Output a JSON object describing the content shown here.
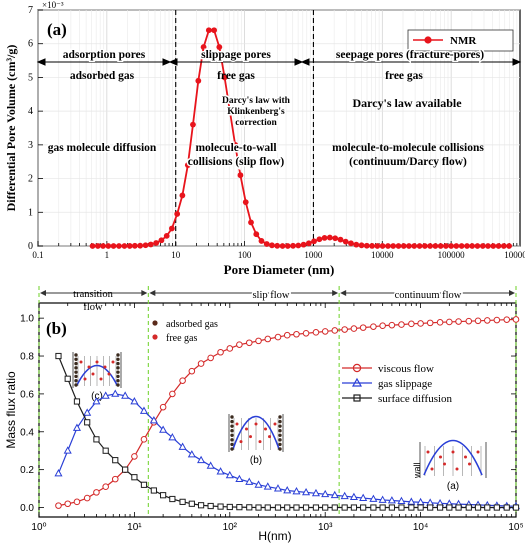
{
  "chart_data": [
    {
      "panel_label": "(a)",
      "type": "line",
      "xscale": "log",
      "xlim": [
        0.1,
        1000000
      ],
      "ylim": [
        0,
        0.007
      ],
      "xlabel": "Pore Diameter (nm)",
      "ylabel": "Differential Pore Volume (cm³/g)",
      "y_multiplier": "×10⁻³",
      "x_tick_labels": [
        "0.1",
        "1",
        "10",
        "100",
        "1000",
        "10000",
        "100000",
        "1000000"
      ],
      "y_tick_labels": [
        "0",
        "1",
        "2",
        "3",
        "4",
        "5",
        "6",
        "7"
      ],
      "grid": true,
      "legend_position": "top-right",
      "divider_lines_at": [
        10,
        1000
      ],
      "series": [
        {
          "name": "NMR",
          "color": "#e8141c",
          "marker": "circle",
          "x": [
            0.62,
            0.74,
            0.88,
            1.05,
            1.25,
            1.5,
            1.8,
            2.15,
            2.55,
            3.05,
            3.65,
            4.35,
            5.2,
            6.2,
            7.4,
            8.8,
            10.5,
            12.5,
            15,
            17.8,
            21.3,
            25.4,
            30.3,
            36.1,
            43,
            51.3,
            61.2,
            73,
            87,
            104,
            124,
            148,
            176,
            210,
            250,
            298,
            356,
            424,
            506,
            603,
            719,
            857,
            1020,
            1220,
            1450,
            1730,
            2070,
            2470,
            2940,
            3510,
            4190,
            5000,
            5960,
            7110,
            8480,
            10100,
            12100,
            14400,
            17200,
            20500,
            24400,
            29100,
            34800,
            41500,
            49500,
            59000,
            70400,
            83900,
            100000,
            119000,
            142000,
            170000,
            202000,
            241000,
            288000,
            343000,
            409000,
            488000,
            582000,
            694000
          ],
          "y": [
            0,
            0,
            0,
            0,
            0,
            0,
            0,
            2e-06,
            5e-06,
            1e-05,
            2.2e-05,
            4.5e-05,
            9e-05,
            0.00017,
            0.0003,
            0.00052,
            0.00095,
            0.0015,
            0.0024,
            0.0036,
            0.0049,
            0.0059,
            0.0064,
            0.0064,
            0.0059,
            0.005,
            0.004,
            0.003,
            0.0021,
            0.0013,
            0.0007,
            0.00035,
            0.00015,
            6e-05,
            2e-05,
            5e-06,
            0,
            0,
            5e-06,
            1.5e-05,
            4e-05,
            8e-05,
            0.00014,
            0.0002,
            0.00024,
            0.00025,
            0.00023,
            0.00019,
            0.00013,
            8e-05,
            4e-05,
            2e-05,
            8e-06,
            3e-06,
            1e-06,
            0,
            0,
            0,
            0,
            0,
            0,
            0,
            0,
            0,
            0,
            0,
            0,
            0,
            0,
            0,
            0,
            0,
            0,
            0,
            0,
            0,
            0,
            0,
            0,
            0
          ]
        }
      ],
      "annotations": {
        "zone_headers": [
          "adsorption pores",
          "slippage pores",
          "seepage pores (fracture-pores)"
        ],
        "gas_state": [
          "adsorbed gas",
          "free gas",
          "free gas"
        ],
        "law_middle": [
          "Darcy's law with",
          "Klinkenberg's",
          "correction"
        ],
        "law_right": "Darcy's law available",
        "mechanism_left": "gas molecule diffusion",
        "mechanism_middle": [
          "molecule-to-wall",
          "collisions (slip flow)"
        ],
        "mechanism_right": [
          "molecule-to-molecule collisions",
          "(continuum/Darcy flow)"
        ]
      }
    },
    {
      "panel_label": "(b)",
      "type": "line",
      "xscale": "log",
      "xlim": [
        1,
        100000
      ],
      "ylim": [
        -0.05,
        1.08
      ],
      "xlabel": "H(nm)",
      "ylabel": "Mass flux ratio",
      "x_tick_labels": [
        "10⁰",
        "10¹",
        "10²",
        "10³",
        "10⁴",
        "10⁵"
      ],
      "y_tick_labels": [
        "0.0",
        "0.2",
        "0.4",
        "0.6",
        "0.8",
        "1.0"
      ],
      "regime_boundaries": [
        14,
        1400
      ],
      "regimes": [
        "transition\nflow",
        "slip flow",
        "continuum flow"
      ],
      "legend_position": "right",
      "series": [
        {
          "name": "viscous flow",
          "color": "#d42a2a",
          "marker": "circle-open",
          "x": [
            1.6,
            2,
            2.5,
            3.2,
            4,
            5,
            6.3,
            8,
            10,
            12.6,
            16,
            20,
            25,
            32,
            40,
            50,
            63,
            80,
            100,
            126,
            160,
            200,
            250,
            320,
            400,
            500,
            630,
            800,
            1000,
            1260,
            1600,
            2000,
            2500,
            3200,
            4000,
            5000,
            6300,
            8000,
            10000,
            12600,
            16000,
            20000,
            25000,
            32000,
            40000,
            50000,
            63000,
            80000,
            100000
          ],
          "y": [
            0.01,
            0.02,
            0.03,
            0.05,
            0.08,
            0.11,
            0.15,
            0.2,
            0.27,
            0.36,
            0.45,
            0.53,
            0.6,
            0.67,
            0.72,
            0.76,
            0.79,
            0.82,
            0.84,
            0.86,
            0.87,
            0.88,
            0.89,
            0.9,
            0.91,
            0.915,
            0.92,
            0.925,
            0.93,
            0.935,
            0.94,
            0.945,
            0.95,
            0.955,
            0.96,
            0.963,
            0.966,
            0.97,
            0.972,
            0.975,
            0.978,
            0.98,
            0.982,
            0.984,
            0.986,
            0.988,
            0.99,
            0.992,
            0.993
          ]
        },
        {
          "name": "gas slippage",
          "color": "#2a3fd6",
          "marker": "triangle-open",
          "x": [
            1.6,
            2,
            2.5,
            3.2,
            4,
            5,
            6.3,
            8,
            10,
            12.6,
            16,
            20,
            25,
            32,
            40,
            50,
            63,
            80,
            100,
            126,
            160,
            200,
            250,
            320,
            400,
            500,
            630,
            800,
            1000,
            1260,
            1600,
            2000,
            2500,
            3200,
            4000,
            5000,
            6300,
            8000,
            10000,
            12600,
            16000,
            20000,
            25000,
            32000,
            40000,
            50000,
            63000,
            80000,
            100000
          ],
          "y": [
            0.18,
            0.3,
            0.42,
            0.5,
            0.56,
            0.59,
            0.6,
            0.59,
            0.56,
            0.51,
            0.46,
            0.41,
            0.37,
            0.32,
            0.28,
            0.25,
            0.22,
            0.19,
            0.17,
            0.15,
            0.135,
            0.12,
            0.11,
            0.1,
            0.09,
            0.085,
            0.08,
            0.075,
            0.07,
            0.065,
            0.06,
            0.055,
            0.05,
            0.045,
            0.04,
            0.037,
            0.034,
            0.03,
            0.028,
            0.025,
            0.022,
            0.02,
            0.018,
            0.016,
            0.014,
            0.012,
            0.01,
            0.008,
            0.007
          ]
        },
        {
          "name": "surface diffusion",
          "color": "#1e1e1e",
          "marker": "square-open",
          "x": [
            1.6,
            2,
            2.5,
            3.2,
            4,
            5,
            6.3,
            8,
            10,
            12.6,
            16,
            20,
            25,
            32,
            40,
            50,
            63,
            80,
            100,
            126,
            160,
            200,
            250,
            320,
            400,
            500,
            630,
            800,
            1000,
            1260,
            1600,
            2000,
            2500,
            3200,
            4000,
            5000,
            6300,
            8000,
            10000,
            12600,
            16000,
            20000,
            25000,
            32000,
            40000,
            50000,
            63000,
            80000,
            100000
          ],
          "y": [
            0.8,
            0.68,
            0.56,
            0.45,
            0.36,
            0.3,
            0.25,
            0.2,
            0.16,
            0.12,
            0.09,
            0.065,
            0.045,
            0.03,
            0.02,
            0.012,
            0.008,
            0.005,
            0.003,
            0.002,
            0.001,
            0,
            0,
            0,
            0,
            0,
            0,
            0,
            0,
            0,
            0,
            0,
            0,
            0,
            0,
            0,
            0,
            0,
            0,
            0,
            0,
            0,
            0,
            0,
            0,
            0,
            0,
            0,
            0
          ]
        }
      ],
      "particle_legend": [
        {
          "label": "adsorbed gas",
          "color": "#5a2a1a"
        },
        {
          "label": "free gas",
          "color": "#d42a2a"
        }
      ],
      "insets": [
        "(c)",
        "(b)",
        "(a)"
      ],
      "wall_label": "wall"
    }
  ]
}
